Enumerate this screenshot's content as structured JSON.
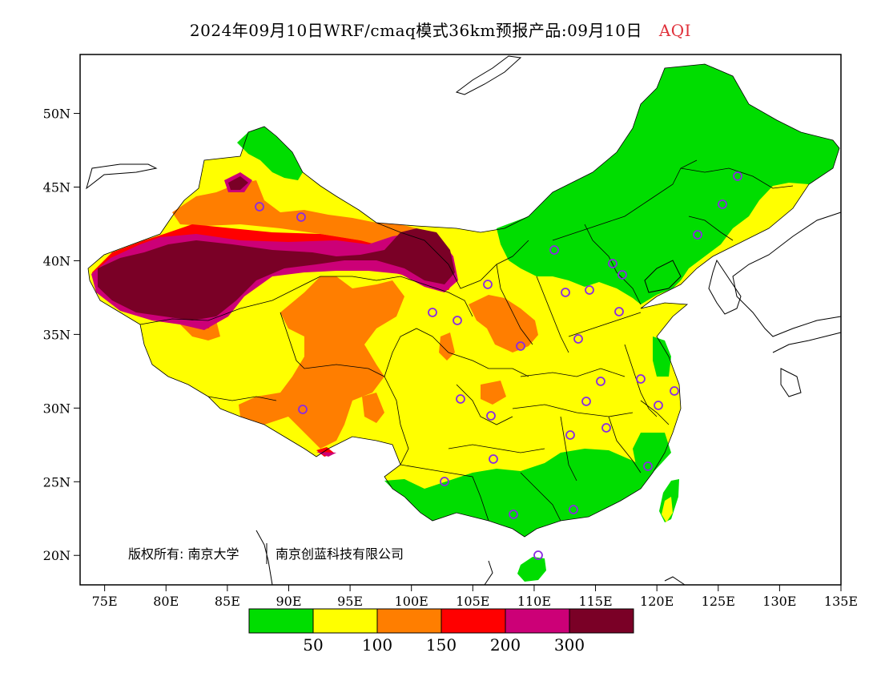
{
  "title": {
    "main": "2024年09月10日WRF/cmaq模式36km预报产品:09月10日",
    "variable": "AQI",
    "variable_color": "#e0303a"
  },
  "map": {
    "lon_ticks": [
      "75E",
      "80E",
      "85E",
      "90E",
      "95E",
      "100E",
      "105E",
      "110E",
      "115E",
      "120E",
      "125E",
      "130E",
      "135E"
    ],
    "lat_ticks": [
      "50N",
      "45N",
      "40N",
      "35N",
      "30N",
      "25N",
      "20N"
    ],
    "lon_range": [
      73,
      135
    ],
    "lat_range": [
      18,
      54
    ],
    "copyright": "版权所有: 南京大学",
    "copyright_company": "南京创蓝科技有限公司",
    "station_marker_color": "#8a2be2"
  },
  "legend": {
    "colors": [
      "#00dd00",
      "#ffff00",
      "#ff7e00",
      "#ff0000",
      "#cc0077",
      "#7a0026"
    ],
    "labels": [
      "50",
      "100",
      "150",
      "200",
      "300"
    ]
  }
}
